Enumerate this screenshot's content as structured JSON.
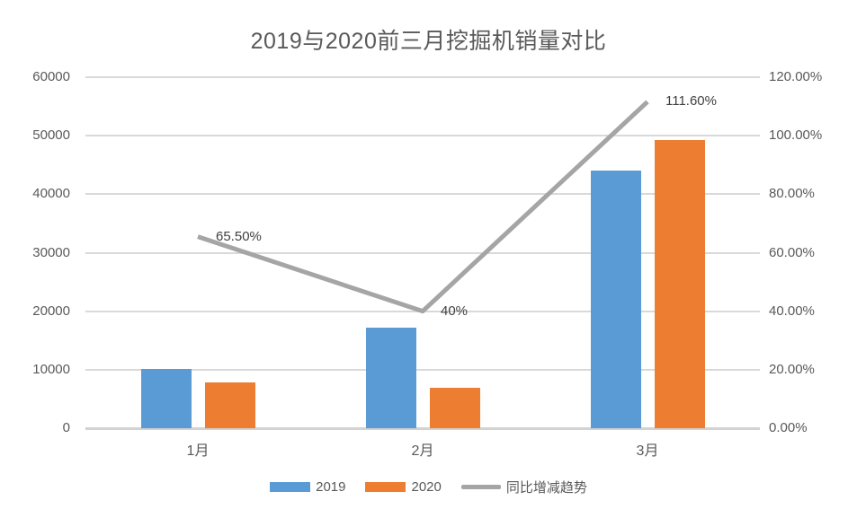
{
  "title": "2019与2020前三月挖掘机销量对比",
  "colors": {
    "series_2019": "#5B9BD5",
    "series_2020": "#ED7D31",
    "trend_line": "#A5A5A5",
    "gridline": "#D9D9D9",
    "axis_text": "#595959",
    "title_text": "#595959",
    "data_label_text": "#404040"
  },
  "chart_data": {
    "type": "bar",
    "subtype": "bar-line-combo",
    "title": "2019与2020前三月挖掘机销量对比",
    "categories": [
      "1月",
      "2月",
      "3月"
    ],
    "series": [
      {
        "name": "2019",
        "type": "bar",
        "axis": "left",
        "color": "#5B9BD5",
        "values": [
          10100,
          17200,
          44100
        ]
      },
      {
        "name": "2020",
        "type": "bar",
        "axis": "left",
        "color": "#ED7D31",
        "values": [
          7800,
          6900,
          49300
        ]
      },
      {
        "name": "同比增减趋势",
        "type": "line",
        "axis": "right",
        "color": "#A5A5A5",
        "values": [
          65.5,
          40,
          111.6
        ],
        "point_labels": [
          "65.50%",
          "40%",
          "111.60%"
        ]
      }
    ],
    "left_axis": {
      "min": 0,
      "max": 60000,
      "step": 10000,
      "ticks": [
        "60000",
        "50000",
        "40000",
        "30000",
        "20000",
        "10000",
        "0"
      ]
    },
    "right_axis": {
      "min": 0,
      "max": 120,
      "step": 20,
      "ticks": [
        "120.00%",
        "100.00%",
        "80.00%",
        "60.00%",
        "40.00%",
        "20.00%",
        "0.00%"
      ]
    },
    "grid": true,
    "legend_position": "bottom"
  },
  "legend": {
    "items": [
      {
        "label": "2019",
        "swatch": "bar",
        "color": "#5B9BD5"
      },
      {
        "label": "2020",
        "swatch": "bar",
        "color": "#ED7D31"
      },
      {
        "label": "同比增减趋势",
        "swatch": "line",
        "color": "#A5A5A5"
      }
    ]
  }
}
